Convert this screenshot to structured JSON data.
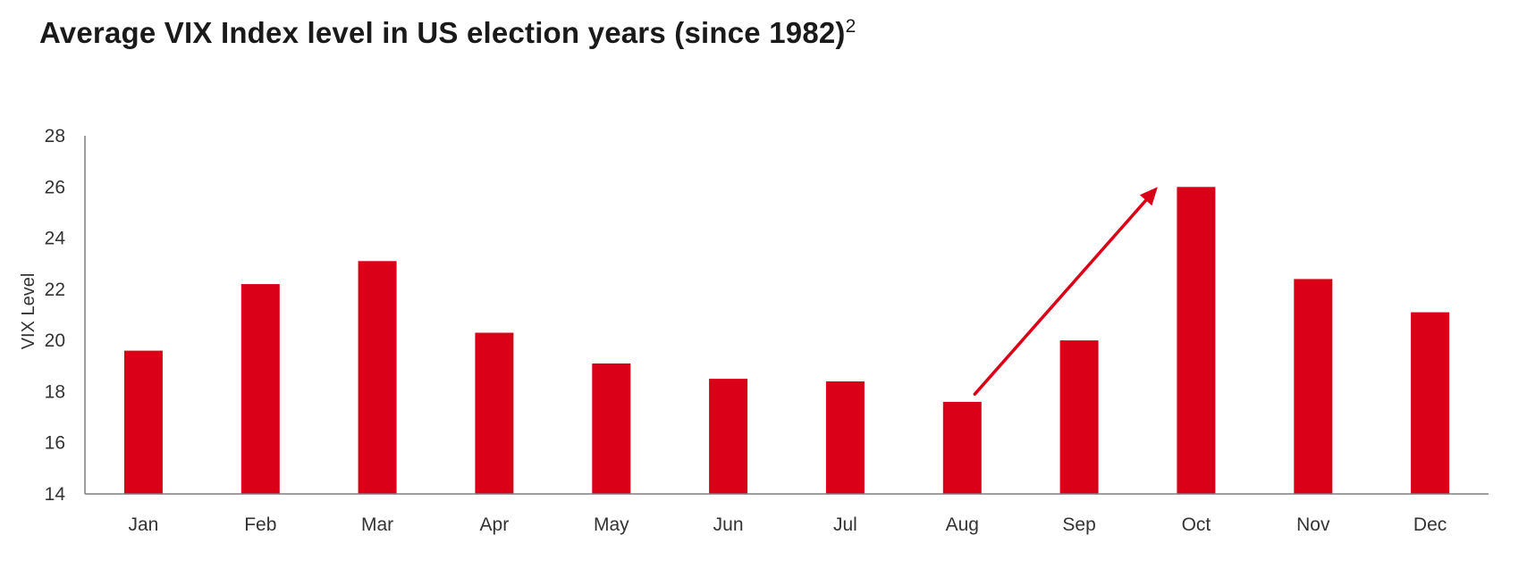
{
  "chart_data": {
    "type": "bar",
    "title": "Average VIX Index level in US election years (since 1982)",
    "title_superscript": "2",
    "xlabel": "",
    "ylabel": "VIX Level",
    "categories": [
      "Jan",
      "Feb",
      "Mar",
      "Apr",
      "May",
      "Jun",
      "Jul",
      "Aug",
      "Sep",
      "Oct",
      "Nov",
      "Dec"
    ],
    "values": [
      19.6,
      22.2,
      23.1,
      20.3,
      19.1,
      18.5,
      18.4,
      17.6,
      20.0,
      26.0,
      22.4,
      21.1
    ],
    "ylim": [
      14,
      28
    ],
    "yticks": [
      14,
      16,
      18,
      20,
      22,
      24,
      26,
      28
    ],
    "bar_color": "#DA0018",
    "grid": false,
    "legend": "none",
    "annotation": {
      "type": "arrow",
      "from_category": "Aug",
      "from_value": 17.9,
      "to_category": "Oct",
      "to_value": 26.0,
      "color": "#DA0018"
    }
  }
}
